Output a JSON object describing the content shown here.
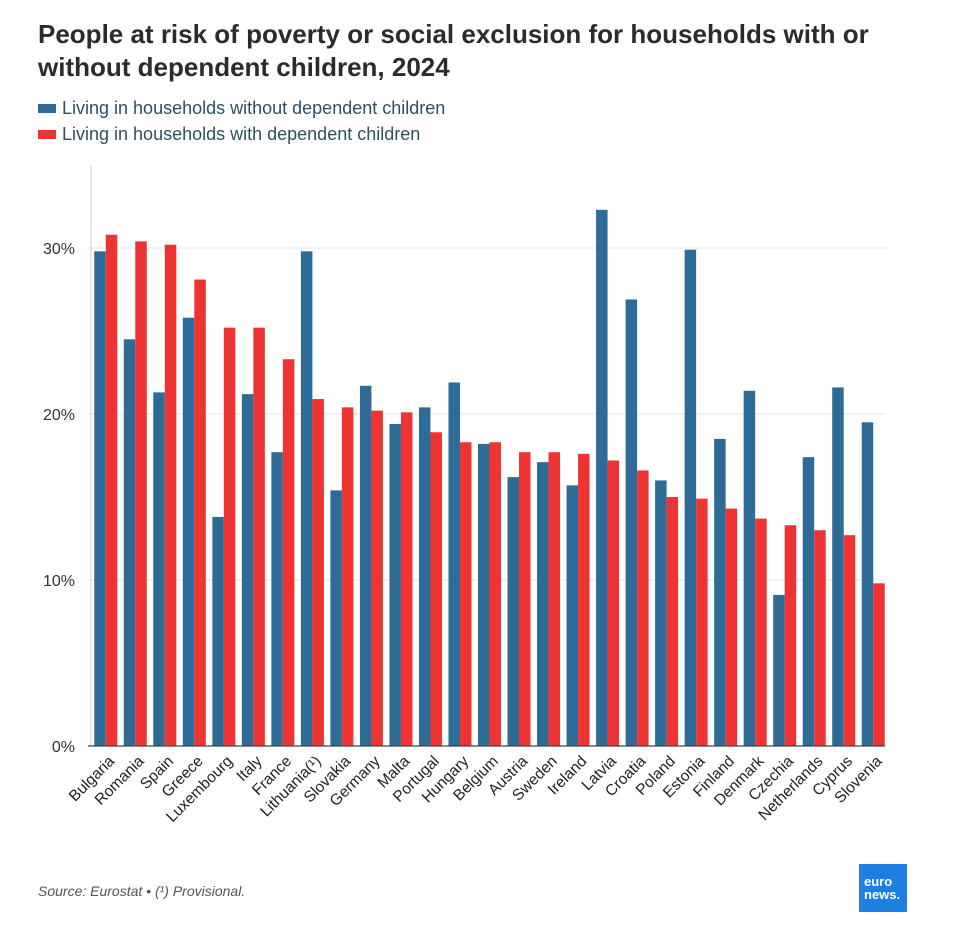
{
  "title": "People at risk of poverty or social exclusion for households with or without dependent children, 2024",
  "source": "Source: Eurostat • (¹) Provisional.",
  "logo": {
    "line1": "euro",
    "line2": "news."
  },
  "colors": {
    "without": "#2e6b96",
    "with": "#ee3333",
    "logo": "#1e7fe0"
  },
  "chart_data": {
    "type": "bar",
    "ylim": [
      0,
      35
    ],
    "yticks": [
      0,
      10,
      20,
      30
    ],
    "ytick_labels": [
      "0%",
      "10%",
      "20%",
      "30%"
    ],
    "grid": true,
    "legend_position": "top-left",
    "categories": [
      "Bulgaria",
      "Romania",
      "Spain",
      "Greece",
      "Luxembourg",
      "Italy",
      "France",
      "Lithuania(¹)",
      "Slovakia",
      "Germany",
      "Malta",
      "Portugal",
      "Hungary",
      "Belgium",
      "Austria",
      "Sweden",
      "Ireland",
      "Latvia",
      "Croatia",
      "Poland",
      "Estonia",
      "Finland",
      "Denmark",
      "Czechia",
      "Netherlands",
      "Cyprus",
      "Slovenia"
    ],
    "series": [
      {
        "name": "Living in households without dependent children",
        "values": [
          29.8,
          24.5,
          21.3,
          25.8,
          13.8,
          21.2,
          17.7,
          29.8,
          15.4,
          21.7,
          19.4,
          20.4,
          21.9,
          18.2,
          16.2,
          17.1,
          15.7,
          32.3,
          26.9,
          16.0,
          29.9,
          18.5,
          21.4,
          9.1,
          17.4,
          21.6,
          19.5
        ]
      },
      {
        "name": "Living in households with dependent children",
        "values": [
          30.8,
          30.4,
          30.2,
          28.1,
          25.2,
          25.2,
          23.3,
          20.9,
          20.4,
          20.2,
          20.1,
          18.9,
          18.3,
          18.3,
          17.7,
          17.7,
          17.6,
          17.2,
          16.6,
          15.0,
          14.9,
          14.3,
          13.7,
          13.3,
          13.0,
          12.7,
          9.8
        ]
      }
    ]
  }
}
